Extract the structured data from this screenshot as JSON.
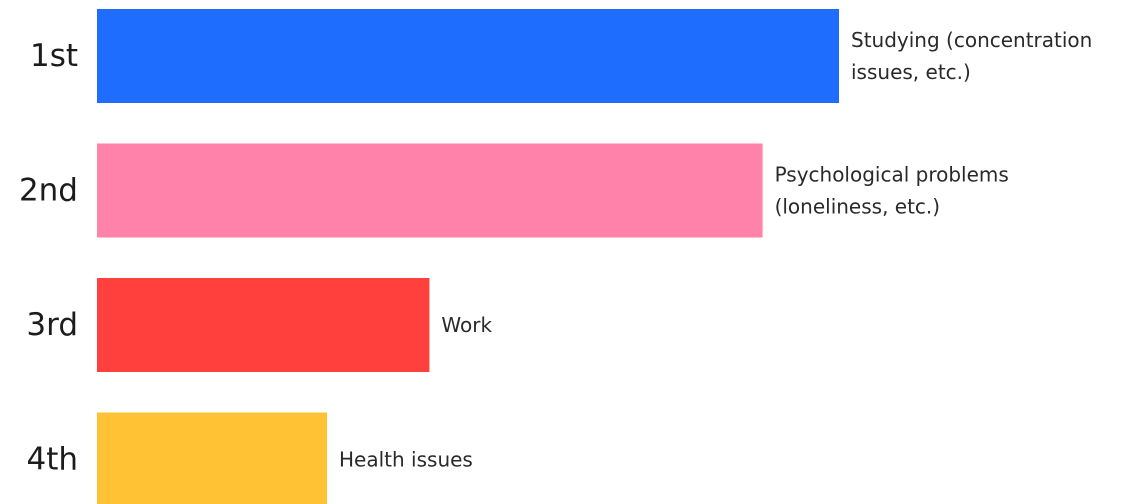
{
  "chart_data": {
    "type": "bar",
    "orientation": "horizontal",
    "categories": [
      "1st",
      "2nd",
      "3rd",
      "4th"
    ],
    "labels": [
      [
        "Studying (concentration",
        "issues, etc.)"
      ],
      [
        "Psychological problems",
        "(loneliness, etc.)"
      ],
      [
        "Work"
      ],
      [
        "Health issues"
      ]
    ],
    "values": [
      100,
      89.7,
      44.8,
      31.0
    ],
    "colors": [
      "#1f6dff",
      "#ff82aa",
      "#ff403d",
      "#ffc235"
    ],
    "title": "",
    "xlabel": "",
    "ylabel": "",
    "grid": false,
    "legend": "none"
  }
}
